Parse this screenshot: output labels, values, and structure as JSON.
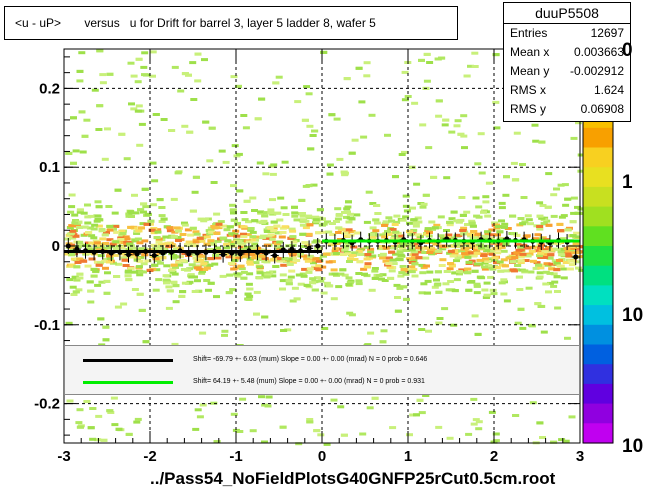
{
  "chart_data": {
    "type": "scatter",
    "title": "<u - uP>       versus   u for Drift for barrel 3, layer 5 ladder 8, wafer 5",
    "xlabel": "",
    "ylabel": "",
    "xlim": [
      -3,
      3
    ],
    "ylim": [
      -0.25,
      0.25
    ],
    "x_ticks": [
      "-3",
      "-2",
      "-1",
      "0",
      "1",
      "2",
      "3"
    ],
    "y_ticks": [
      "-0.2",
      "-0.1",
      "0",
      "0.1",
      "0.2"
    ],
    "z_ticks": [
      "1",
      "10",
      "10"
    ],
    "z_top_partial": "0",
    "grid": true,
    "stats": {
      "name": "duuP5508",
      "entries_label": "Entries",
      "entries": "12697",
      "meanx_label": "Mean x",
      "meanx": "0.003663",
      "meany_label": "Mean y",
      "meany": "-0.002912",
      "rmsx_label": "RMS x",
      "rmsx": "1.624",
      "rmsy_label": "RMS y",
      "rmsy": "0.06908"
    },
    "fits": [
      {
        "color": "#000000",
        "text": "Shift=   -69.79 +- 6.03 (mum) Slope =    0.00 +- 0.00 (mrad)  N = 0 prob = 0.646",
        "x_range": [
          -3,
          0
        ],
        "y": -0.007
      },
      {
        "color": "#00ee00",
        "text": "Shift=    64.19 +- 5.48 (mum) Slope =    0.00 +- 0.00 (mrad)  N = 0 prob = 0.931",
        "x_range": [
          0,
          3
        ],
        "y": 0.0064
      }
    ],
    "profile_points": {
      "x": [
        -2.95,
        -2.85,
        -2.75,
        -2.65,
        -2.55,
        -2.45,
        -2.35,
        -2.25,
        -2.15,
        -2.05,
        -1.95,
        -1.85,
        -1.75,
        -1.65,
        -1.55,
        -1.45,
        -1.35,
        -1.25,
        -1.15,
        -1.05,
        -0.95,
        -0.85,
        -0.75,
        -0.65,
        -0.55,
        -0.45,
        -0.35,
        -0.25,
        -0.15,
        -0.05,
        0.05,
        0.15,
        0.25,
        0.35,
        0.45,
        0.55,
        0.65,
        0.75,
        0.85,
        0.95,
        1.05,
        1.15,
        1.25,
        1.35,
        1.45,
        1.55,
        1.65,
        1.75,
        1.85,
        1.95,
        2.05,
        2.15,
        2.25,
        2.35,
        2.45,
        2.55,
        2.65,
        2.75,
        2.85,
        2.95
      ],
      "y": [
        0.0,
        -0.004,
        -0.006,
        -0.008,
        -0.007,
        -0.009,
        -0.008,
        -0.011,
        -0.01,
        -0.007,
        -0.012,
        -0.009,
        -0.008,
        -0.006,
        -0.01,
        -0.009,
        -0.008,
        -0.007,
        -0.011,
        -0.009,
        -0.01,
        -0.006,
        -0.008,
        -0.009,
        -0.012,
        -0.005,
        -0.004,
        -0.006,
        -0.003,
        0.0,
        0.006,
        0.005,
        0.007,
        0.004,
        0.008,
        0.006,
        0.006,
        0.007,
        0.005,
        0.008,
        0.006,
        0.004,
        0.007,
        0.006,
        0.009,
        0.007,
        0.006,
        0.005,
        0.008,
        0.007,
        0.006,
        0.009,
        0.007,
        0.008,
        0.006,
        0.005,
        0.004,
        0.007,
        0.005,
        -0.014
      ]
    },
    "footer": "../Pass54_NoFieldPlotsG40GNFP25rCut0.5cm.root"
  }
}
